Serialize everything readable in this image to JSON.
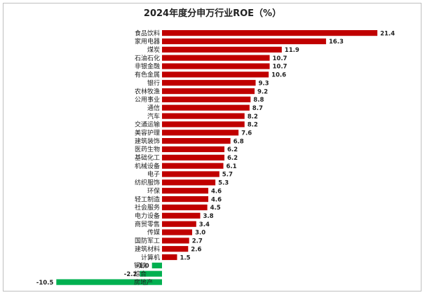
{
  "chart_data": {
    "type": "bar",
    "orientation": "horizontal",
    "title": "2024年度分申万行业ROE（%）",
    "categories": [
      "食品饮料",
      "家用电器",
      "煤炭",
      "石油石化",
      "非银金融",
      "有色金属",
      "银行",
      "农林牧渔",
      "公用事业",
      "通信",
      "汽车",
      "交通运输",
      "美容护理",
      "建筑装饰",
      "医药生物",
      "基础化工",
      "机械设备",
      "电子",
      "纺织服饰",
      "环保",
      "轻工制造",
      "社会服务",
      "电力设备",
      "商贸零售",
      "传媒",
      "国防军工",
      "建筑材料",
      "计算机",
      "钢铁",
      "综合",
      "房地产"
    ],
    "values": [
      21.4,
      16.3,
      11.9,
      10.7,
      10.7,
      10.6,
      9.3,
      9.2,
      8.8,
      8.7,
      8.2,
      8.2,
      7.6,
      6.8,
      6.2,
      6.2,
      6.1,
      5.7,
      5.3,
      4.6,
      4.6,
      4.5,
      3.8,
      3.4,
      3.0,
      2.7,
      2.6,
      1.5,
      -1.0,
      -2.2,
      -10.5
    ],
    "value_labels": [
      "21.4",
      "16.3",
      "11.9",
      "10.7",
      "10.7",
      "10.6",
      "9.3",
      "9.2",
      "8.8",
      "8.7",
      "8.2",
      "8.2",
      "7.6",
      "6.8",
      "6.2",
      "6.2",
      "6.1",
      "5.7",
      "5.3",
      "4.6",
      "4.6",
      "4.5",
      "3.8",
      "3.4",
      "3.0",
      "2.7",
      "2.6",
      "1.5",
      "-1.0",
      "-2.2",
      "-10.5"
    ],
    "colors": {
      "positive": "#c00000",
      "negative": "#00b050"
    },
    "xlim": [
      -10.5,
      21.4
    ],
    "axes_visible": false,
    "grid": false,
    "legend": "none"
  }
}
